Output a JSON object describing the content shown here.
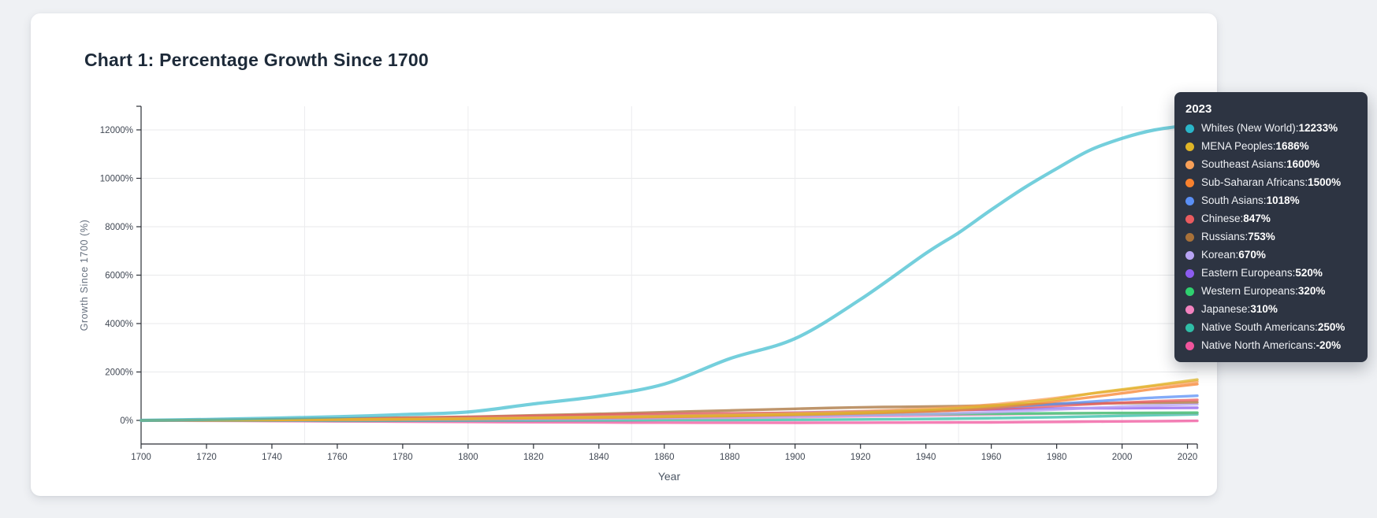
{
  "card": {
    "title": "Chart 1: Percentage Growth Since 1700"
  },
  "chart_data": {
    "type": "line",
    "title": "Chart 1: Percentage Growth Since 1700",
    "xlabel": "Year",
    "ylabel": "Growth Since 1700 (%)",
    "xlim": [
      1700,
      2023
    ],
    "ylim": [
      -975,
      12975
    ],
    "x_ticks": [
      1700,
      1720,
      1740,
      1760,
      1780,
      1800,
      1820,
      1840,
      1860,
      1880,
      1900,
      1920,
      1940,
      1960,
      1980,
      2000,
      2020
    ],
    "y_ticks": [
      0,
      2000,
      4000,
      6000,
      8000,
      10000,
      12000
    ],
    "y_tick_suffix": "%",
    "grid_vertical_years": [
      1750,
      1800,
      1850,
      1900,
      1950,
      2000
    ],
    "grid_horizontal_values": [
      0,
      2000,
      4000,
      6000,
      8000,
      10000,
      12000
    ],
    "legend_position": "tooltip-right",
    "x": [
      1700,
      1720,
      1740,
      1760,
      1780,
      1800,
      1820,
      1840,
      1860,
      1880,
      1900,
      1920,
      1940,
      1950,
      1960,
      1970,
      1980,
      1990,
      2000,
      2010,
      2023
    ],
    "series": [
      {
        "name": "Whites (New World)",
        "color": "#2ab6c9",
        "opacity": 0.65,
        "width": 4.2,
        "values": [
          0,
          40,
          90,
          150,
          240,
          350,
          680,
          1000,
          1500,
          2550,
          3380,
          5000,
          6900,
          7750,
          8700,
          9600,
          10400,
          11150,
          11650,
          12000,
          12233
        ]
      },
      {
        "name": "MENA Peoples",
        "color": "#dfb527",
        "opacity": 0.75,
        "width": 3.4,
        "values": [
          0,
          10,
          20,
          35,
          50,
          70,
          100,
          130,
          160,
          200,
          250,
          320,
          430,
          500,
          600,
          720,
          880,
          1100,
          1280,
          1450,
          1686
        ]
      },
      {
        "name": "Southeast Asians",
        "color": "#f8a058",
        "opacity": 0.75,
        "width": 3.4,
        "values": [
          0,
          10,
          25,
          40,
          60,
          85,
          115,
          150,
          190,
          240,
          300,
          380,
          480,
          550,
          650,
          780,
          930,
          1100,
          1250,
          1420,
          1600
        ]
      },
      {
        "name": "Sub-Saharan Africans",
        "color": "#f8812e",
        "opacity": 0.75,
        "width": 3.4,
        "values": [
          0,
          8,
          18,
          30,
          45,
          65,
          90,
          115,
          145,
          180,
          230,
          290,
          370,
          430,
          520,
          640,
          790,
          950,
          1120,
          1300,
          1500
        ]
      },
      {
        "name": "South Asians",
        "color": "#5a8ff5",
        "opacity": 0.75,
        "width": 3.4,
        "values": [
          0,
          10,
          20,
          35,
          55,
          80,
          110,
          145,
          180,
          220,
          270,
          330,
          400,
          450,
          520,
          600,
          680,
          770,
          860,
          940,
          1018
        ]
      },
      {
        "name": "Chinese",
        "color": "#ea5b5f",
        "opacity": 0.75,
        "width": 3.4,
        "values": [
          0,
          15,
          35,
          60,
          90,
          130,
          180,
          230,
          270,
          290,
          310,
          340,
          380,
          420,
          470,
          530,
          600,
          670,
          730,
          790,
          847
        ]
      },
      {
        "name": "Russians",
        "color": "#a87139",
        "opacity": 0.75,
        "width": 3.4,
        "values": [
          0,
          20,
          45,
          75,
          110,
          150,
          210,
          270,
          340,
          410,
          480,
          540,
          570,
          590,
          620,
          650,
          680,
          700,
          715,
          730,
          753
        ]
      },
      {
        "name": "Korean",
        "color": "#b7a3f3",
        "opacity": 0.75,
        "width": 3.4,
        "values": [
          0,
          8,
          16,
          26,
          38,
          52,
          70,
          90,
          115,
          140,
          170,
          210,
          260,
          300,
          340,
          390,
          450,
          510,
          570,
          620,
          670
        ]
      },
      {
        "name": "Eastern Europeans",
        "color": "#8c5cf0",
        "opacity": 0.75,
        "width": 3.4,
        "values": [
          0,
          15,
          32,
          52,
          75,
          100,
          135,
          170,
          210,
          260,
          320,
          370,
          410,
          430,
          450,
          470,
          490,
          500,
          505,
          510,
          520
        ]
      },
      {
        "name": "Western Europeans",
        "color": "#2fd06f",
        "opacity": 0.75,
        "width": 3.4,
        "values": [
          0,
          10,
          22,
          36,
          52,
          70,
          95,
          120,
          150,
          185,
          220,
          245,
          260,
          268,
          275,
          283,
          292,
          300,
          306,
          312,
          320
        ]
      },
      {
        "name": "Japanese",
        "color": "#f282bf",
        "opacity": 0.75,
        "width": 3.4,
        "values": [
          0,
          5,
          12,
          20,
          30,
          42,
          58,
          75,
          95,
          115,
          140,
          170,
          200,
          220,
          245,
          265,
          285,
          295,
          302,
          306,
          310
        ]
      },
      {
        "name": "Native South Americans",
        "color": "#2fbda6",
        "opacity": 0.75,
        "width": 3.4,
        "values": [
          0,
          -5,
          -10,
          -12,
          -10,
          -5,
          0,
          5,
          12,
          18,
          25,
          40,
          60,
          75,
          90,
          110,
          135,
          160,
          190,
          218,
          250
        ]
      },
      {
        "name": "Native North Americans",
        "color": "#f0549c",
        "opacity": 0.75,
        "width": 3.4,
        "values": [
          0,
          -12,
          -25,
          -38,
          -50,
          -62,
          -75,
          -84,
          -91,
          -95,
          -97,
          -93,
          -88,
          -84,
          -80,
          -72,
          -62,
          -52,
          -43,
          -34,
          -20
        ]
      }
    ]
  },
  "tooltip": {
    "header": "2023",
    "background": "#2d3442",
    "items": [
      {
        "label": "Whites (New World)",
        "value": "12233%",
        "color": "#2ab6c9"
      },
      {
        "label": "MENA Peoples",
        "value": "1686%",
        "color": "#dfb527"
      },
      {
        "label": "Southeast Asians",
        "value": "1600%",
        "color": "#f8a058"
      },
      {
        "label": "Sub-Saharan Africans",
        "value": "1500%",
        "color": "#f8812e"
      },
      {
        "label": "South Asians",
        "value": "1018%",
        "color": "#5a8ff5"
      },
      {
        "label": "Chinese",
        "value": "847%",
        "color": "#ea5b5f"
      },
      {
        "label": "Russians",
        "value": "753%",
        "color": "#a87139"
      },
      {
        "label": "Korean",
        "value": "670%",
        "color": "#b7a3f3"
      },
      {
        "label": "Eastern Europeans",
        "value": "520%",
        "color": "#8c5cf0"
      },
      {
        "label": "Western Europeans",
        "value": "320%",
        "color": "#2fd06f"
      },
      {
        "label": "Japanese",
        "value": "310%",
        "color": "#f282bf"
      },
      {
        "label": "Native South Americans",
        "value": "250%",
        "color": "#2fbda6"
      },
      {
        "label": "Native North Americans",
        "value": "-20%",
        "color": "#f0549c"
      }
    ]
  }
}
